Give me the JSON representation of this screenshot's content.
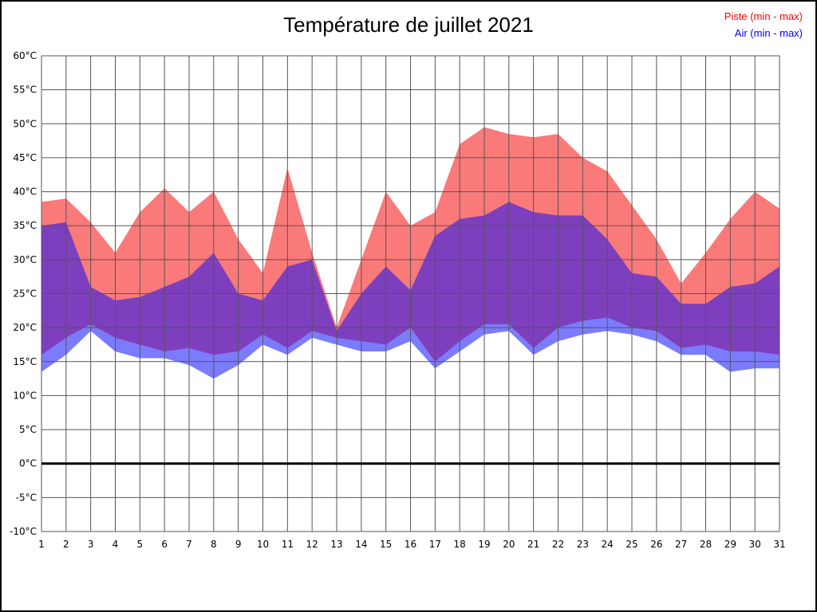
{
  "title": "Température de juillet 2021",
  "legend": {
    "piste": "Piste (min - max)",
    "air": "Air (min - max)"
  },
  "colors": {
    "piste_band": "#fa7a7a",
    "air_band": "#7b7bff",
    "overlap_band": "#7e3fbf",
    "piste_text": "#ff0000",
    "air_text": "#0000ff",
    "grid": "#555555",
    "zero_line": "#000000",
    "axis_text": "#000000"
  },
  "chart_data": {
    "type": "area",
    "title": "Température de juillet 2021",
    "xlabel": "",
    "ylabel": "",
    "grid": true,
    "legend_position": "top-right",
    "x": [
      1,
      2,
      3,
      4,
      5,
      6,
      7,
      8,
      9,
      10,
      11,
      12,
      13,
      14,
      15,
      16,
      17,
      18,
      19,
      20,
      21,
      22,
      23,
      24,
      25,
      26,
      27,
      28,
      29,
      30,
      31
    ],
    "ylim": [
      -10,
      60
    ],
    "yticks": [
      60,
      55,
      50,
      45,
      40,
      35,
      30,
      25,
      20,
      15,
      10,
      5,
      0,
      -5,
      -10
    ],
    "ytick_suffix": "°C",
    "series": [
      {
        "name": "Piste (min - max)",
        "band": "piste",
        "color": "#fa7a7a",
        "max": [
          38.5,
          39,
          35.5,
          31,
          37,
          40.5,
          37,
          40,
          33,
          28,
          43.5,
          31,
          20,
          30,
          40,
          35,
          37,
          47,
          49.5,
          48.5,
          48,
          48.5,
          45,
          43,
          38,
          33,
          26.5,
          31,
          36,
          40,
          37.5
        ],
        "min": [
          16,
          18.5,
          20.5,
          18.5,
          17.5,
          16.5,
          17,
          16,
          16.5,
          19,
          17,
          19.5,
          18.5,
          18,
          17.5,
          20,
          15,
          18,
          20.5,
          20.5,
          17,
          20,
          21,
          21.5,
          20,
          19.5,
          17,
          17.5,
          16.5,
          16.5,
          16
        ]
      },
      {
        "name": "Air (min - max)",
        "band": "air",
        "color": "#7b7bff",
        "max": [
          35,
          35.5,
          26,
          24,
          24.5,
          26,
          27.5,
          31,
          25,
          24,
          29,
          30,
          19.5,
          25,
          29,
          25.5,
          33.5,
          36,
          36.5,
          38.5,
          37,
          36.5,
          36.5,
          33,
          28,
          27.5,
          23.5,
          23.5,
          26,
          26.5,
          29
        ],
        "min": [
          13.5,
          16,
          19.5,
          16.5,
          15.5,
          15.5,
          14.5,
          12.5,
          14.5,
          17.5,
          16,
          18.5,
          17.5,
          16.5,
          16.5,
          18,
          14,
          16.5,
          19,
          19.5,
          16,
          18,
          19,
          19.5,
          19,
          18,
          16,
          16,
          13.5,
          14,
          14
        ]
      }
    ],
    "overlap_color": "#7e3fbf"
  }
}
